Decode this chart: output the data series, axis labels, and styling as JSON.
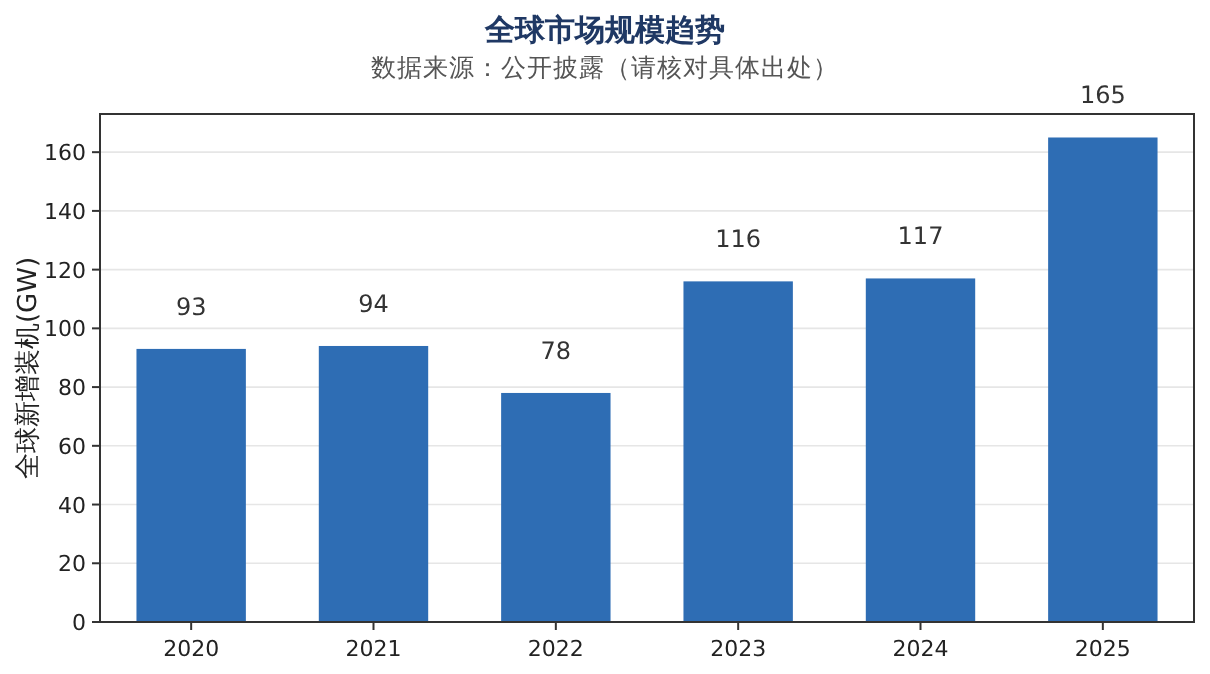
{
  "chart_data": {
    "type": "bar",
    "title": "全球市场规模趋势",
    "subtitle": "数据来源：公开披露（请核对具体出处）",
    "ylabel": "全球新增装机(GW)",
    "categories": [
      "2020",
      "2021",
      "2022",
      "2023",
      "2024",
      "2025"
    ],
    "values": [
      93,
      94,
      78,
      116,
      117,
      165
    ],
    "color": "#2e6db4",
    "ylim": [
      0,
      173
    ],
    "yticks": [
      0,
      20,
      40,
      60,
      80,
      100,
      120,
      140,
      160
    ],
    "grid": "y",
    "data_labels": true
  }
}
